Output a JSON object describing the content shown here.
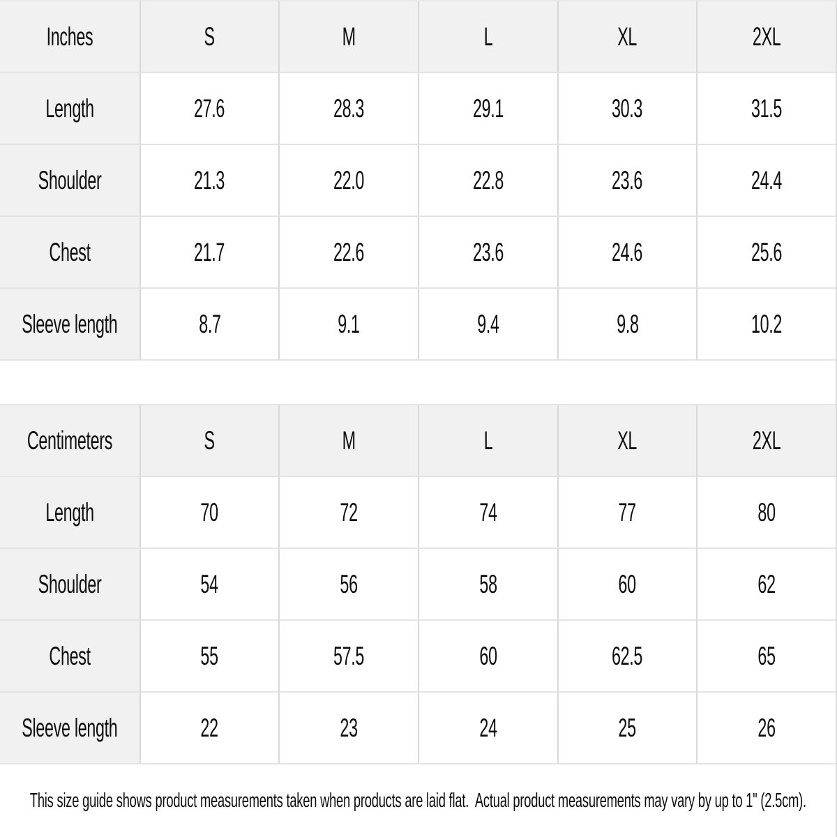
{
  "colors": {
    "header_bg": "#f1f1f2",
    "label_column_bg": "#f1f1f2",
    "border_horizontal": "#e3e3e3",
    "border_vertical": "#d8d8d8",
    "text": "#0d0d0d",
    "background": "#ffffff"
  },
  "tables": [
    {
      "unit_label": "Inches",
      "sizes": [
        "S",
        "M",
        "L",
        "XL",
        "2XL"
      ],
      "rows": [
        {
          "label": "Length",
          "values": [
            "27.6",
            "28.3",
            "29.1",
            "30.3",
            "31.5"
          ]
        },
        {
          "label": "Shoulder",
          "values": [
            "21.3",
            "22.0",
            "22.8",
            "23.6",
            "24.4"
          ]
        },
        {
          "label": "Chest",
          "values": [
            "21.7",
            "22.6",
            "23.6",
            "24.6",
            "25.6"
          ]
        },
        {
          "label": "Sleeve length",
          "values": [
            "8.7",
            "9.1",
            "9.4",
            "9.8",
            "10.2"
          ]
        }
      ]
    },
    {
      "unit_label": "Centimeters",
      "sizes": [
        "S",
        "M",
        "L",
        "XL",
        "2XL"
      ],
      "rows": [
        {
          "label": "Length",
          "values": [
            "70",
            "72",
            "74",
            "77",
            "80"
          ]
        },
        {
          "label": "Shoulder",
          "values": [
            "54",
            "56",
            "58",
            "60",
            "62"
          ]
        },
        {
          "label": "Chest",
          "values": [
            "55",
            "57.5",
            "60",
            "62.5",
            "65"
          ]
        },
        {
          "label": "Sleeve length",
          "values": [
            "22",
            "23",
            "24",
            "25",
            "26"
          ]
        }
      ]
    }
  ],
  "note": "This size guide shows product measurements taken when products are laid flat.  Actual product measurements may vary by up to 1\" (2.5cm)."
}
